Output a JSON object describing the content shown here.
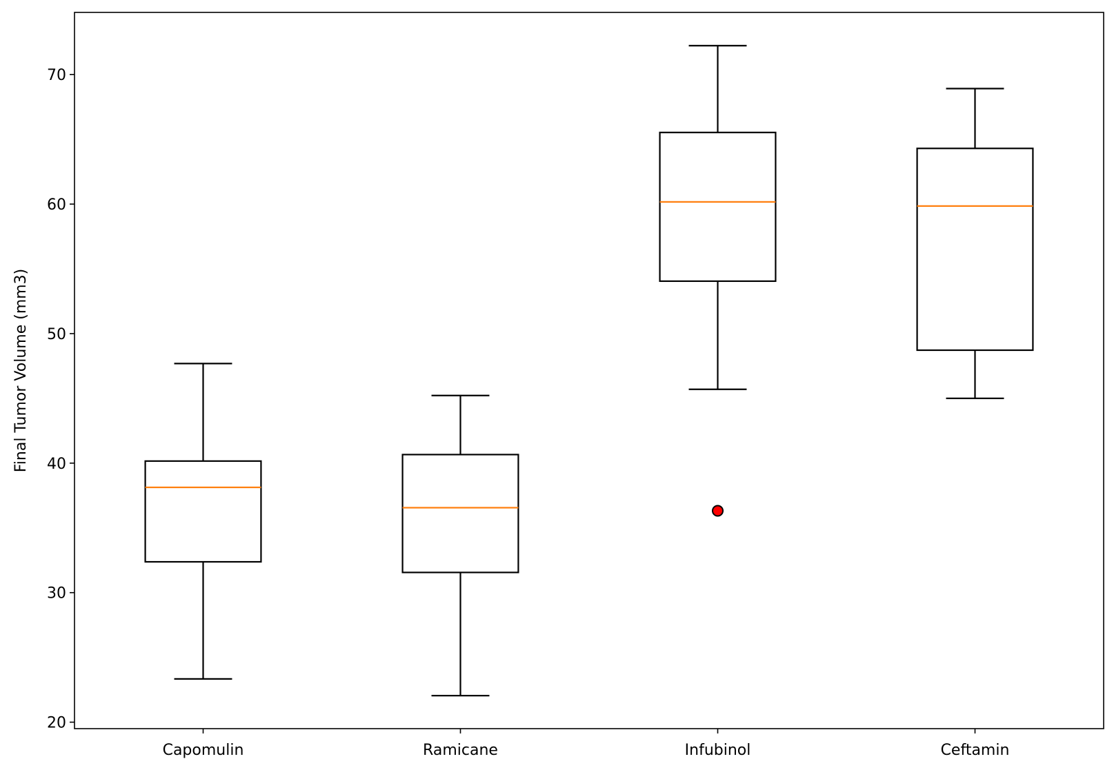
{
  "chart_data": {
    "type": "box",
    "title": "",
    "xlabel": "",
    "ylabel": "Final Tumor Volume (mm3)",
    "ylim": [
      19.5,
      74.8
    ],
    "yticks": [
      20,
      30,
      40,
      50,
      60,
      70
    ],
    "grid": false,
    "categories": [
      "Capomulin",
      "Ramicane",
      "Infubinol",
      "Ceftamin"
    ],
    "boxes": [
      {
        "whisker_low": 23.34,
        "q1": 32.38,
        "median": 38.13,
        "q3": 40.16,
        "whisker_high": 47.69,
        "outliers": []
      },
      {
        "whisker_low": 22.05,
        "q1": 31.56,
        "median": 36.56,
        "q3": 40.66,
        "whisker_high": 45.22,
        "outliers": []
      },
      {
        "whisker_low": 45.7,
        "q1": 54.05,
        "median": 60.17,
        "q3": 65.53,
        "whisker_high": 72.23,
        "outliers": [
          36.32
        ]
      },
      {
        "whisker_low": 45.0,
        "q1": 48.72,
        "median": 59.85,
        "q3": 64.3,
        "whisker_high": 68.92,
        "outliers": []
      }
    ],
    "colors": {
      "box": "#000000",
      "median": "#ff7f0e",
      "outlier_fill": "#ff0000",
      "outlier_edge": "#000000"
    }
  }
}
